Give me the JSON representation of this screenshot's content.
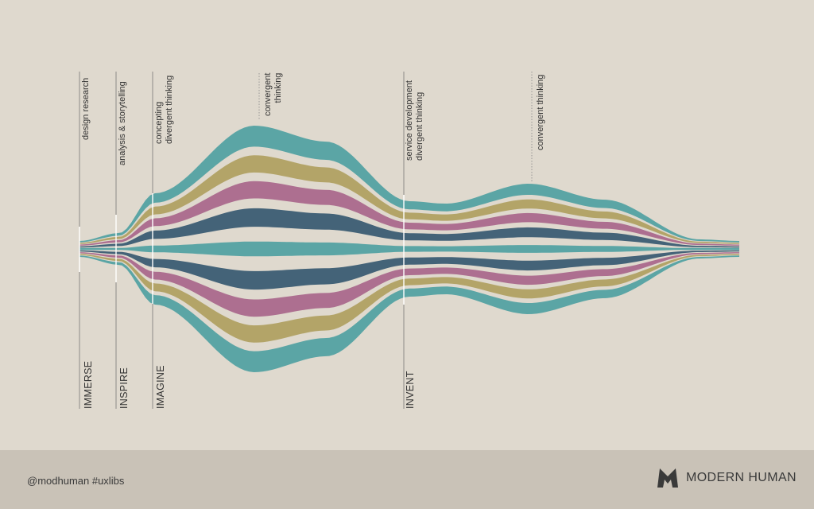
{
  "diagram": {
    "top_labels": [
      {
        "id": "design-research",
        "line1": "design research",
        "line2": ""
      },
      {
        "id": "analysis-storytelling",
        "line1": "analysis & storytelling",
        "line2": ""
      },
      {
        "id": "concepting",
        "line1": "concepting",
        "line2": "divergent thinking"
      },
      {
        "id": "convergent-1",
        "line1": "convergent",
        "line2": "thinking"
      },
      {
        "id": "service-development",
        "line1": "service development",
        "line2": "divergent thinking"
      },
      {
        "id": "convergent-2",
        "line1": "convergent thinking",
        "line2": ""
      }
    ],
    "stages": [
      {
        "id": "immerse",
        "label": "IMMERSE"
      },
      {
        "id": "inspire",
        "label": "INSPIRE"
      },
      {
        "id": "imagine",
        "label": "IMAGINE"
      },
      {
        "id": "invent",
        "label": "INVENT"
      }
    ],
    "band_colors": [
      "#5ba5a5",
      "#b3a468",
      "#ad6f90",
      "#446378"
    ]
  },
  "footer": {
    "handle": "@modhuman #uxlibs",
    "brand_name": "MODERN HUMAN",
    "logo_icon": "modern-human-logo-icon"
  }
}
